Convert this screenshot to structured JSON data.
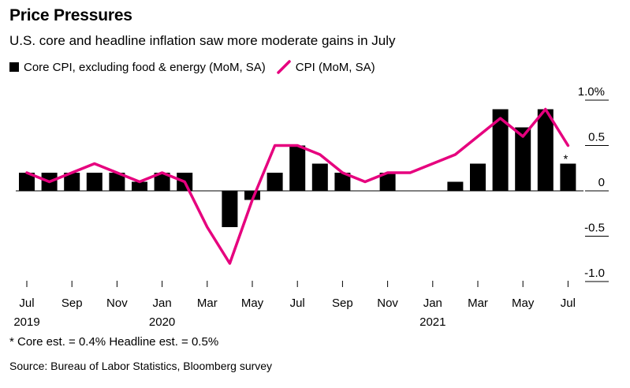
{
  "title": "Price Pressures",
  "subtitle": "U.S. core and headline inflation saw more moderate gains in July",
  "legend": {
    "core_label": "Core CPI, excluding food & energy (MoM, SA)",
    "cpi_label": "CPI (MoM, SA)"
  },
  "colors": {
    "bar": "#000000",
    "line": "#e6007e"
  },
  "note": "* Core est. = 0.4% Headline est. = 0.5%",
  "source": "Source: Bureau of Labor Statistics, Bloomberg survey",
  "asterisk": "*",
  "chart_data": {
    "type": "bar",
    "categories": [
      "2019-07",
      "2019-08",
      "2019-09",
      "2019-10",
      "2019-11",
      "2019-12",
      "2020-01",
      "2020-02",
      "2020-03",
      "2020-04",
      "2020-05",
      "2020-06",
      "2020-07",
      "2020-08",
      "2020-09",
      "2020-10",
      "2020-11",
      "2020-12",
      "2021-01",
      "2021-02",
      "2021-03",
      "2021-04",
      "2021-05",
      "2021-06",
      "2021-07"
    ],
    "series": [
      {
        "name": "Core CPI, excluding food & energy (MoM, SA)",
        "type": "bar",
        "values": [
          0.2,
          0.2,
          0.2,
          0.2,
          0.2,
          0.1,
          0.2,
          0.2,
          0.0,
          -0.4,
          -0.1,
          0.2,
          0.5,
          0.3,
          0.2,
          0.0,
          0.2,
          0.0,
          0.0,
          0.1,
          0.3,
          0.9,
          0.7,
          0.9,
          0.3
        ]
      },
      {
        "name": "CPI (MoM, SA)",
        "type": "line",
        "values": [
          0.2,
          0.1,
          0.2,
          0.3,
          0.2,
          0.1,
          0.2,
          0.1,
          -0.4,
          -0.8,
          -0.1,
          0.5,
          0.5,
          0.4,
          0.2,
          0.1,
          0.2,
          0.2,
          0.3,
          0.4,
          0.6,
          0.8,
          0.6,
          0.9,
          0.5
        ]
      }
    ],
    "ylim": [
      -1.0,
      1.0
    ],
    "yticks": [
      {
        "value": 1.0,
        "label": "1.0%"
      },
      {
        "value": 0.5,
        "label": "0.5"
      },
      {
        "value": 0.0,
        "label": "0"
      },
      {
        "value": -0.5,
        "label": "-0.5"
      },
      {
        "value": -1.0,
        "label": "-1.0"
      }
    ],
    "xticks": [
      {
        "index": 0,
        "label": "Jul",
        "year": "2019"
      },
      {
        "index": 2,
        "label": "Sep",
        "year": ""
      },
      {
        "index": 4,
        "label": "Nov",
        "year": ""
      },
      {
        "index": 6,
        "label": "Jan",
        "year": "2020"
      },
      {
        "index": 8,
        "label": "Mar",
        "year": ""
      },
      {
        "index": 10,
        "label": "May",
        "year": ""
      },
      {
        "index": 12,
        "label": "Jul",
        "year": ""
      },
      {
        "index": 14,
        "label": "Sep",
        "year": ""
      },
      {
        "index": 16,
        "label": "Nov",
        "year": ""
      },
      {
        "index": 18,
        "label": "Jan",
        "year": "2021"
      },
      {
        "index": 20,
        "label": "Mar",
        "year": ""
      },
      {
        "index": 22,
        "label": "May",
        "year": ""
      },
      {
        "index": 24,
        "label": "Jul",
        "year": ""
      }
    ]
  }
}
